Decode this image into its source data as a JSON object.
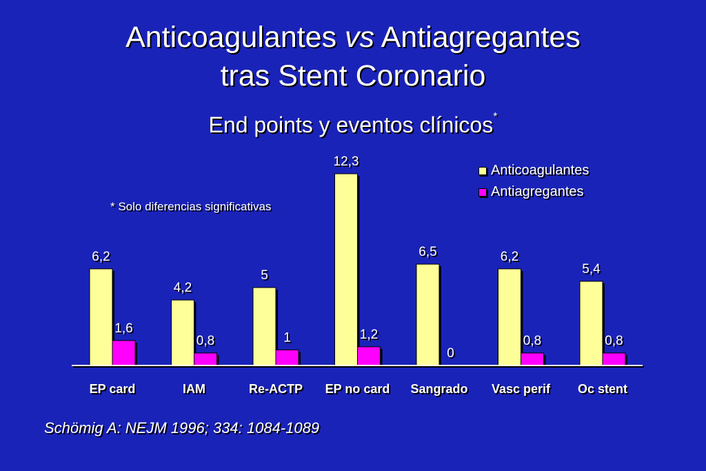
{
  "slide": {
    "title_part1": "Anticoagulantes ",
    "title_italic": "vs",
    "title_part2": " Antiagregantes",
    "title_line2": "tras Stent Coronario",
    "subtitle": "End points y eventos clínicos",
    "subtitle_mark": "*",
    "footnote": "* Solo diferencias significativas",
    "citation": "Schömig A: NEJM 1996; 334: 1084-1089",
    "background_color": "#1a23b8"
  },
  "chart_data": {
    "type": "bar",
    "categories": [
      "EP card",
      "IAM",
      "Re-ACTP",
      "EP no card",
      "Sangrado",
      "Vasc perif",
      "Oc stent"
    ],
    "series": [
      {
        "name": "Anticoagulantes",
        "color": "#ffff99",
        "values": [
          6.2,
          4.2,
          5,
          12.3,
          6.5,
          6.2,
          5.4
        ],
        "labels": [
          "6,2",
          "4,2",
          "5",
          "12,3",
          "6,5",
          "6,2",
          "5,4"
        ]
      },
      {
        "name": "Antiagregantes",
        "color": "#ff00ff",
        "values": [
          1.6,
          0.8,
          1,
          1.2,
          0,
          0.8,
          0.8
        ],
        "labels": [
          "1,6",
          "0,8",
          "1",
          "1,2",
          "0",
          "0,8",
          "0,8"
        ]
      }
    ],
    "ylim": [
      0,
      12.3
    ],
    "legend": "top-right",
    "grid": false
  }
}
